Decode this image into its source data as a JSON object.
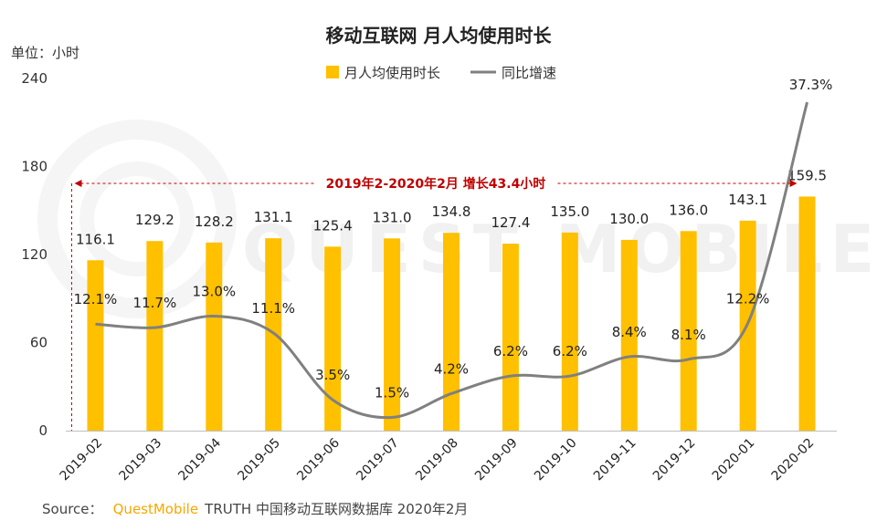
{
  "chart_data": {
    "type": "bar",
    "title": "移动互联网 月人均使用时长",
    "unit_label": "单位：小时",
    "categories": [
      "2019-02",
      "2019-03",
      "2019-04",
      "2019-05",
      "2019-06",
      "2019-07",
      "2019-08",
      "2019-09",
      "2019-10",
      "2019-11",
      "2019-12",
      "2020-01",
      "2020-02"
    ],
    "ylim": [
      0,
      240
    ],
    "yticks": [
      "0",
      "60",
      "120",
      "180",
      "240"
    ],
    "grid": false,
    "legend_position": "top-center",
    "series": [
      {
        "name": "月人均使用时长",
        "kind": "bar",
        "color": "#ffc000",
        "values": [
          116.1,
          129.2,
          128.2,
          131.1,
          125.4,
          131.0,
          134.8,
          127.4,
          135.0,
          130.0,
          136.0,
          143.1,
          159.5
        ],
        "labels": [
          "116.1",
          "129.2",
          "128.2",
          "131.1",
          "125.4",
          "131.0",
          "134.8",
          "127.4",
          "135.0",
          "130.0",
          "136.0",
          "143.1",
          "159.5"
        ]
      },
      {
        "name": "同比增速",
        "kind": "line",
        "color": "#808080",
        "values": [
          12.1,
          11.7,
          13.0,
          11.1,
          3.5,
          1.5,
          4.2,
          6.2,
          6.2,
          8.4,
          8.1,
          12.2,
          37.3
        ],
        "labels": [
          "12.1%",
          "11.7%",
          "13.0%",
          "11.1%",
          "3.5%",
          "1.5%",
          "4.2%",
          "6.2%",
          "6.2%",
          "8.4%",
          "8.1%",
          "12.2%",
          "37.3%"
        ],
        "secondary_ylim": [
          0,
          40
        ]
      }
    ],
    "annotation": {
      "text": "2019年2-2020年2月  增长43.4小时",
      "color": "#c00000",
      "from_category": "2019-02",
      "to_category": "2020-02"
    }
  },
  "watermark": "QUEST MOBILE",
  "source": {
    "prefix": "Source：",
    "brand": "QuestMobile",
    "rest": "TRUTH 中国移动互联网数据库 2020年2月"
  }
}
